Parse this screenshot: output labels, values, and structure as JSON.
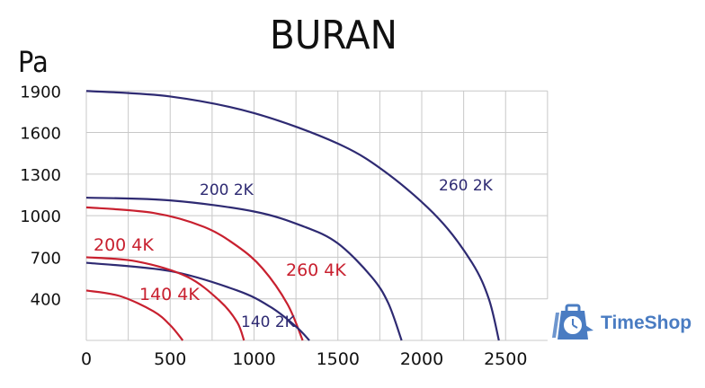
{
  "chart_data": {
    "type": "line",
    "title": "BURAN",
    "xlabel": "",
    "ylabel": "Pa",
    "xlim": [
      0,
      2750
    ],
    "ylim": [
      100,
      1900
    ],
    "x_ticks": [
      0,
      500,
      1000,
      1500,
      2000,
      2500
    ],
    "y_ticks": [
      1900,
      1600,
      1300,
      1000,
      700,
      400
    ],
    "grid": true,
    "legend_position": "inline labels",
    "series": [
      {
        "name": "260 2K",
        "color": "#2e2a72",
        "points": [
          [
            0,
            1900
          ],
          [
            500,
            1860
          ],
          [
            1000,
            1740
          ],
          [
            1500,
            1520
          ],
          [
            1800,
            1300
          ],
          [
            2100,
            980
          ],
          [
            2300,
            660
          ],
          [
            2400,
            400
          ],
          [
            2460,
            100
          ]
        ]
      },
      {
        "name": "200 2K",
        "color": "#2e2a72",
        "points": [
          [
            0,
            1130
          ],
          [
            500,
            1110
          ],
          [
            1000,
            1030
          ],
          [
            1300,
            920
          ],
          [
            1500,
            800
          ],
          [
            1700,
            560
          ],
          [
            1800,
            370
          ],
          [
            1880,
            100
          ]
        ]
      },
      {
        "name": "260 4K",
        "color": "#c8202f",
        "points": [
          [
            0,
            1060
          ],
          [
            400,
            1020
          ],
          [
            700,
            920
          ],
          [
            900,
            780
          ],
          [
            1050,
            620
          ],
          [
            1200,
            360
          ],
          [
            1290,
            100
          ]
        ]
      },
      {
        "name": "140 2K",
        "color": "#2e2a72",
        "points": [
          [
            0,
            660
          ],
          [
            500,
            600
          ],
          [
            900,
            460
          ],
          [
            1100,
            340
          ],
          [
            1250,
            200
          ],
          [
            1330,
            100
          ]
        ]
      },
      {
        "name": "200 4K",
        "color": "#c8202f",
        "points": [
          [
            0,
            700
          ],
          [
            300,
            670
          ],
          [
            600,
            560
          ],
          [
            800,
            380
          ],
          [
            900,
            230
          ],
          [
            940,
            100
          ]
        ]
      },
      {
        "name": "140 4K",
        "color": "#c8202f",
        "points": [
          [
            0,
            460
          ],
          [
            200,
            420
          ],
          [
            400,
            310
          ],
          [
            500,
            210
          ],
          [
            575,
            100
          ]
        ]
      }
    ]
  },
  "labels": {
    "title": "BURAN",
    "yunit": "Pa",
    "logo": "TimeShop"
  },
  "series_labels": [
    {
      "text": "260 2K",
      "x": 488,
      "y": 212,
      "color": "#2e2a72",
      "size": 17
    },
    {
      "text": "200 2K",
      "x": 222,
      "y": 217,
      "color": "#2e2a72",
      "size": 17
    },
    {
      "text": "260 4K",
      "x": 318,
      "y": 307,
      "color": "#c8202f",
      "size": 19
    },
    {
      "text": "200 4K",
      "x": 104,
      "y": 279,
      "color": "#c8202f",
      "size": 19
    },
    {
      "text": "140 4K",
      "x": 155,
      "y": 334,
      "color": "#c8202f",
      "size": 19
    },
    {
      "text": "140 2K",
      "x": 268,
      "y": 364,
      "color": "#2e2a72",
      "size": 17
    }
  ]
}
